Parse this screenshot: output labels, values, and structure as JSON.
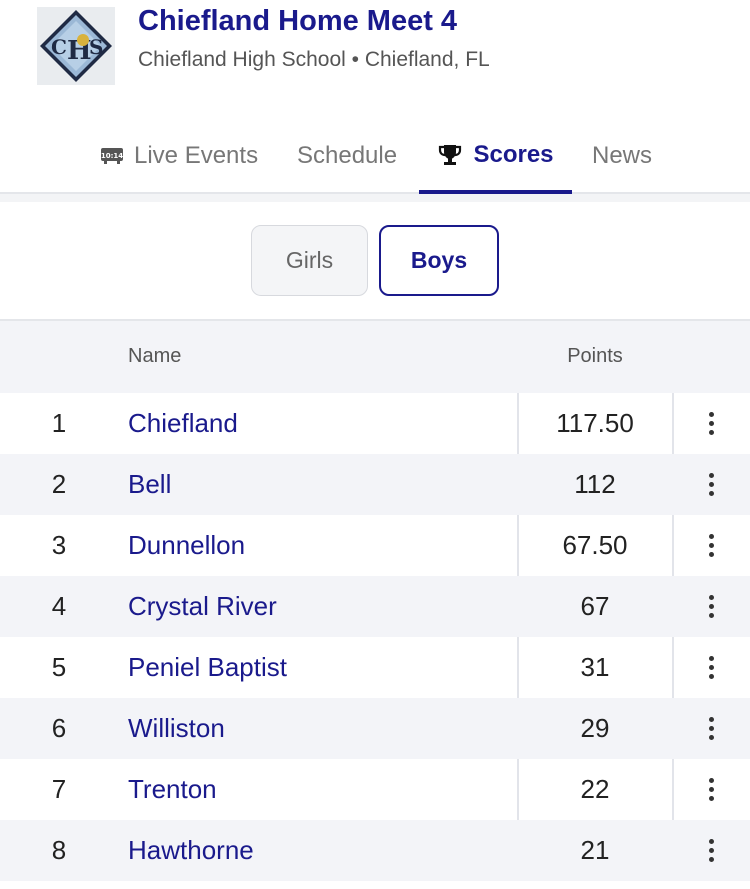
{
  "meet": {
    "title": "Chiefland Home Meet 4",
    "subtitle": "Chiefland High School • Chiefland, FL",
    "logo_icon": "school-logo"
  },
  "tabs": [
    {
      "label": "Live Events",
      "icon": "clock-display-icon",
      "icon_text": "10:14",
      "active": false
    },
    {
      "label": "Schedule",
      "active": false
    },
    {
      "label": "Scores",
      "icon": "trophy-icon",
      "active": true
    },
    {
      "label": "News",
      "active": false
    }
  ],
  "gender": {
    "options": [
      "Girls",
      "Boys"
    ],
    "selected": "Boys"
  },
  "table": {
    "headers": {
      "name": "Name",
      "points": "Points"
    },
    "rows": [
      {
        "rank": "1",
        "name": "Chiefland",
        "points": "117.50"
      },
      {
        "rank": "2",
        "name": "Bell",
        "points": "112"
      },
      {
        "rank": "3",
        "name": "Dunnellon",
        "points": "67.50"
      },
      {
        "rank": "4",
        "name": "Crystal River",
        "points": "67"
      },
      {
        "rank": "5",
        "name": "Peniel Baptist",
        "points": "31"
      },
      {
        "rank": "6",
        "name": "Williston",
        "points": "29"
      },
      {
        "rank": "7",
        "name": "Trenton",
        "points": "22"
      },
      {
        "rank": "8",
        "name": "Hawthorne",
        "points": "21"
      }
    ]
  },
  "colors": {
    "accent": "#1a1a8c",
    "row_alt": "#f3f4f8"
  }
}
